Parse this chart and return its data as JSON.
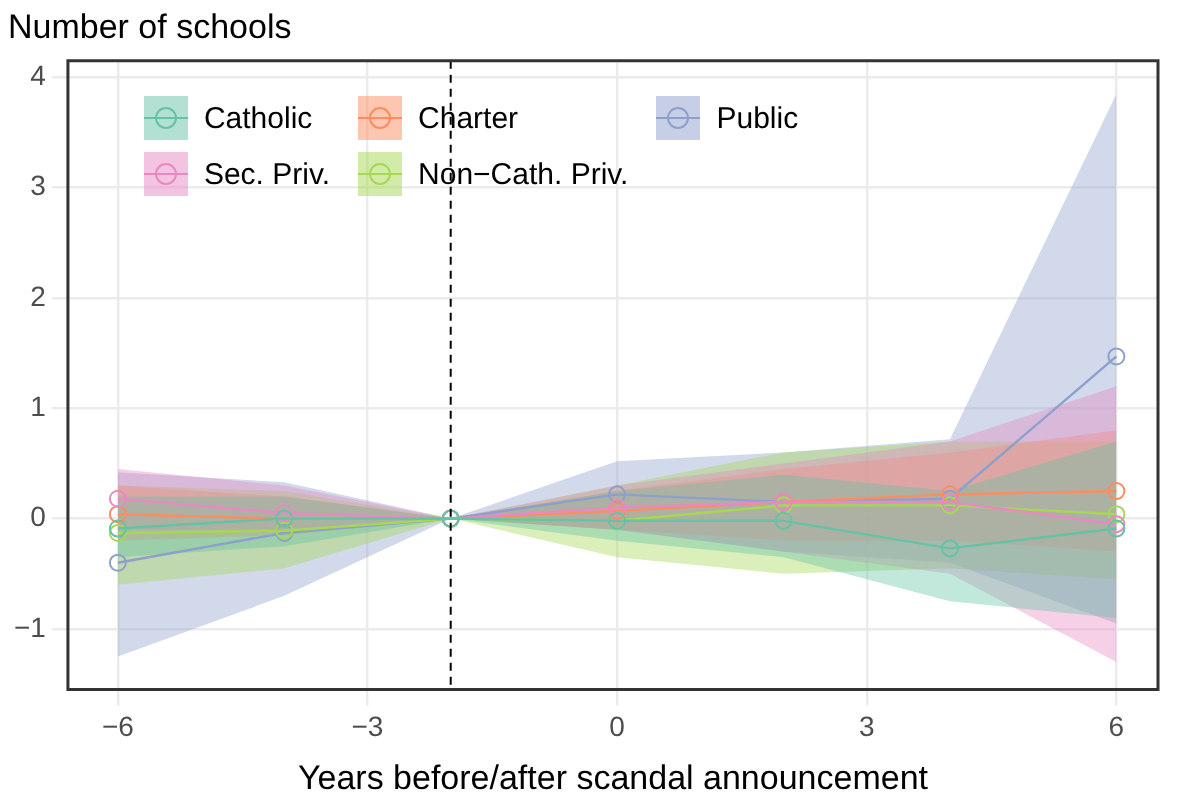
{
  "chart_data": {
    "type": "line",
    "title": "Number of schools",
    "xlabel": "Years before/after scandal announcement",
    "x": [
      -6,
      -4,
      -2,
      0,
      2,
      4,
      6
    ],
    "xlim": [
      -6.6,
      6.5
    ],
    "xticks": [
      -6,
      -3,
      0,
      3,
      6
    ],
    "ylim": [
      -1.55,
      4.15
    ],
    "yticks": [
      -1,
      0,
      1,
      2,
      3,
      4
    ],
    "grid": true,
    "legend": "top left",
    "marker": "circle",
    "line_style": "solid",
    "ref_lines": [
      {
        "axis": "x",
        "value": -2,
        "line_style": "dashed",
        "color": "#000000"
      }
    ],
    "series": [
      {
        "name": "Catholic",
        "color": "#66c2a5",
        "values": [
          -0.09,
          0,
          0,
          -0.02,
          -0.02,
          -0.27,
          -0.09
        ],
        "lower": [
          -0.35,
          -0.25,
          0,
          -0.2,
          -0.35,
          -0.75,
          -0.9
        ],
        "upper": [
          0.2,
          0.2,
          0,
          0.25,
          0.4,
          0.25,
          0.7
        ]
      },
      {
        "name": "Sec. Priv.",
        "color": "#e78ac3",
        "values": [
          0.18,
          0.05,
          0,
          0.1,
          0.15,
          0.15,
          -0.05
        ],
        "lower": [
          -0.1,
          -0.1,
          0,
          -0.1,
          -0.3,
          -0.5,
          -1.3
        ],
        "upper": [
          0.45,
          0.3,
          0,
          0.3,
          0.5,
          0.7,
          1.2
        ]
      },
      {
        "name": "Charter",
        "color": "#fc8d62",
        "values": [
          0.04,
          0,
          0,
          0.07,
          0.15,
          0.22,
          0.25
        ],
        "lower": [
          -0.2,
          -0.15,
          0,
          -0.1,
          -0.2,
          -0.2,
          -0.3
        ],
        "upper": [
          0.3,
          0.2,
          0,
          0.25,
          0.45,
          0.6,
          0.8
        ]
      },
      {
        "name": "Non−Cath. Priv.",
        "color": "#a6d854",
        "values": [
          -0.13,
          -0.11,
          0,
          -0.02,
          0.12,
          0.12,
          0.04
        ],
        "lower": [
          -0.6,
          -0.45,
          0,
          -0.35,
          -0.5,
          -0.45,
          -0.55
        ],
        "upper": [
          0.3,
          0.25,
          0,
          0.3,
          0.6,
          0.7,
          0.7
        ]
      },
      {
        "name": "Public",
        "color": "#8da0cb",
        "values": [
          -0.4,
          -0.13,
          0,
          0.22,
          0.15,
          0.18,
          1.47
        ],
        "lower": [
          -1.25,
          -0.7,
          0,
          -0.1,
          -0.3,
          -0.4,
          -0.95
        ],
        "upper": [
          0.42,
          0.33,
          0,
          0.52,
          0.6,
          0.72,
          3.85
        ]
      }
    ]
  }
}
